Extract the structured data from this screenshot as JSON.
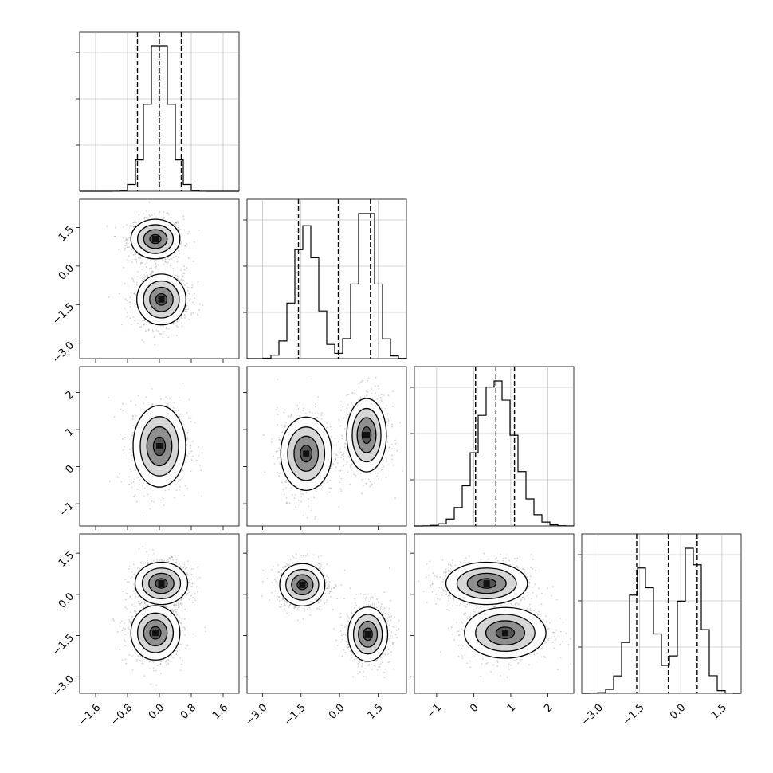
{
  "chart_data": {
    "type": "corner",
    "description_of_panels": "lower-triangle 2D histograms with contours, diagonal 1D histograms with dashed 16/50/84 percentile lines",
    "params": [
      {
        "id": "p0",
        "range": [
          -2.0,
          2.0
        ],
        "ticks": [
          -1.6,
          -0.8,
          0.0,
          0.8,
          1.6
        ],
        "tick_labels": [
          "−1.6",
          "−0.8",
          "0.0",
          "0.8",
          "1.6"
        ],
        "quantiles": [
          -0.55,
          0.0,
          0.55
        ],
        "modes": [
          {
            "mean": 0.0,
            "sd": 0.28,
            "w": 1.0
          }
        ]
      },
      {
        "id": "p1",
        "range": [
          -3.6,
          2.6
        ],
        "ticks": [
          -3.0,
          -1.5,
          0.0,
          1.5
        ],
        "tick_labels": [
          "−3.0",
          "−1.5",
          "0.0",
          "1.5"
        ],
        "quantiles": [
          -1.6,
          -0.05,
          1.2
        ],
        "modes": [
          {
            "mean": -1.3,
            "sd": 0.45,
            "w": 1.0
          },
          {
            "mean": 1.05,
            "sd": 0.38,
            "w": 1.0
          }
        ]
      },
      {
        "id": "p2",
        "range": [
          -1.6,
          2.7
        ],
        "ticks": [
          -1,
          0,
          1,
          2
        ],
        "tick_labels": [
          "−1",
          "0",
          "1",
          "2"
        ],
        "quantiles": [
          0.05,
          0.6,
          1.1
        ],
        "modes": [
          {
            "mean": 0.6,
            "sd": 0.5,
            "w": 1.0
          }
        ]
      },
      {
        "id": "p3",
        "range": [
          -3.6,
          2.2
        ],
        "ticks": [
          -3.0,
          -1.5,
          0.0,
          1.5
        ],
        "tick_labels": [
          "−3.0",
          "−1.5",
          "0.0",
          "1.5"
        ],
        "quantiles": [
          -1.6,
          -0.45,
          0.6
        ],
        "modes": [
          {
            "mean": -1.4,
            "sd": 0.45,
            "w": 1.0
          },
          {
            "mean": 0.4,
            "sd": 0.38,
            "w": 1.0
          }
        ]
      }
    ],
    "pair_clusters": {
      "1_0": [
        {
          "cx": -0.1,
          "cy": 1.05,
          "sx": 0.28,
          "sy": 0.35
        },
        {
          "cx": 0.05,
          "cy": -1.3,
          "sx": 0.28,
          "sy": 0.45
        }
      ],
      "2_0": [
        {
          "cx": 0.0,
          "cy": 0.55,
          "sx": 0.3,
          "sy": 0.5
        }
      ],
      "2_1": [
        {
          "cx": -1.3,
          "cy": 0.35,
          "sx": 0.45,
          "sy": 0.45
        },
        {
          "cx": 1.05,
          "cy": 0.85,
          "sx": 0.35,
          "sy": 0.45
        }
      ],
      "3_0": [
        {
          "cx": 0.05,
          "cy": 0.4,
          "sx": 0.3,
          "sy": 0.35
        },
        {
          "cx": -0.1,
          "cy": -1.4,
          "sx": 0.28,
          "sy": 0.45
        }
      ],
      "3_1": [
        {
          "cx": -1.45,
          "cy": 0.35,
          "sx": 0.4,
          "sy": 0.35
        },
        {
          "cx": 1.1,
          "cy": -1.45,
          "sx": 0.35,
          "sy": 0.45
        }
      ],
      "3_2": [
        {
          "cx": 0.35,
          "cy": 0.4,
          "sx": 0.5,
          "sy": 0.35
        },
        {
          "cx": 0.85,
          "cy": -1.4,
          "sx": 0.5,
          "sy": 0.42
        }
      ]
    },
    "title": "",
    "xlabel": "",
    "ylabel": "",
    "grid": true,
    "legend": "none",
    "colors": {
      "line": "#000000",
      "grid": "#b0b0b0",
      "density_max": "#000000",
      "scatter": "#808080"
    }
  }
}
